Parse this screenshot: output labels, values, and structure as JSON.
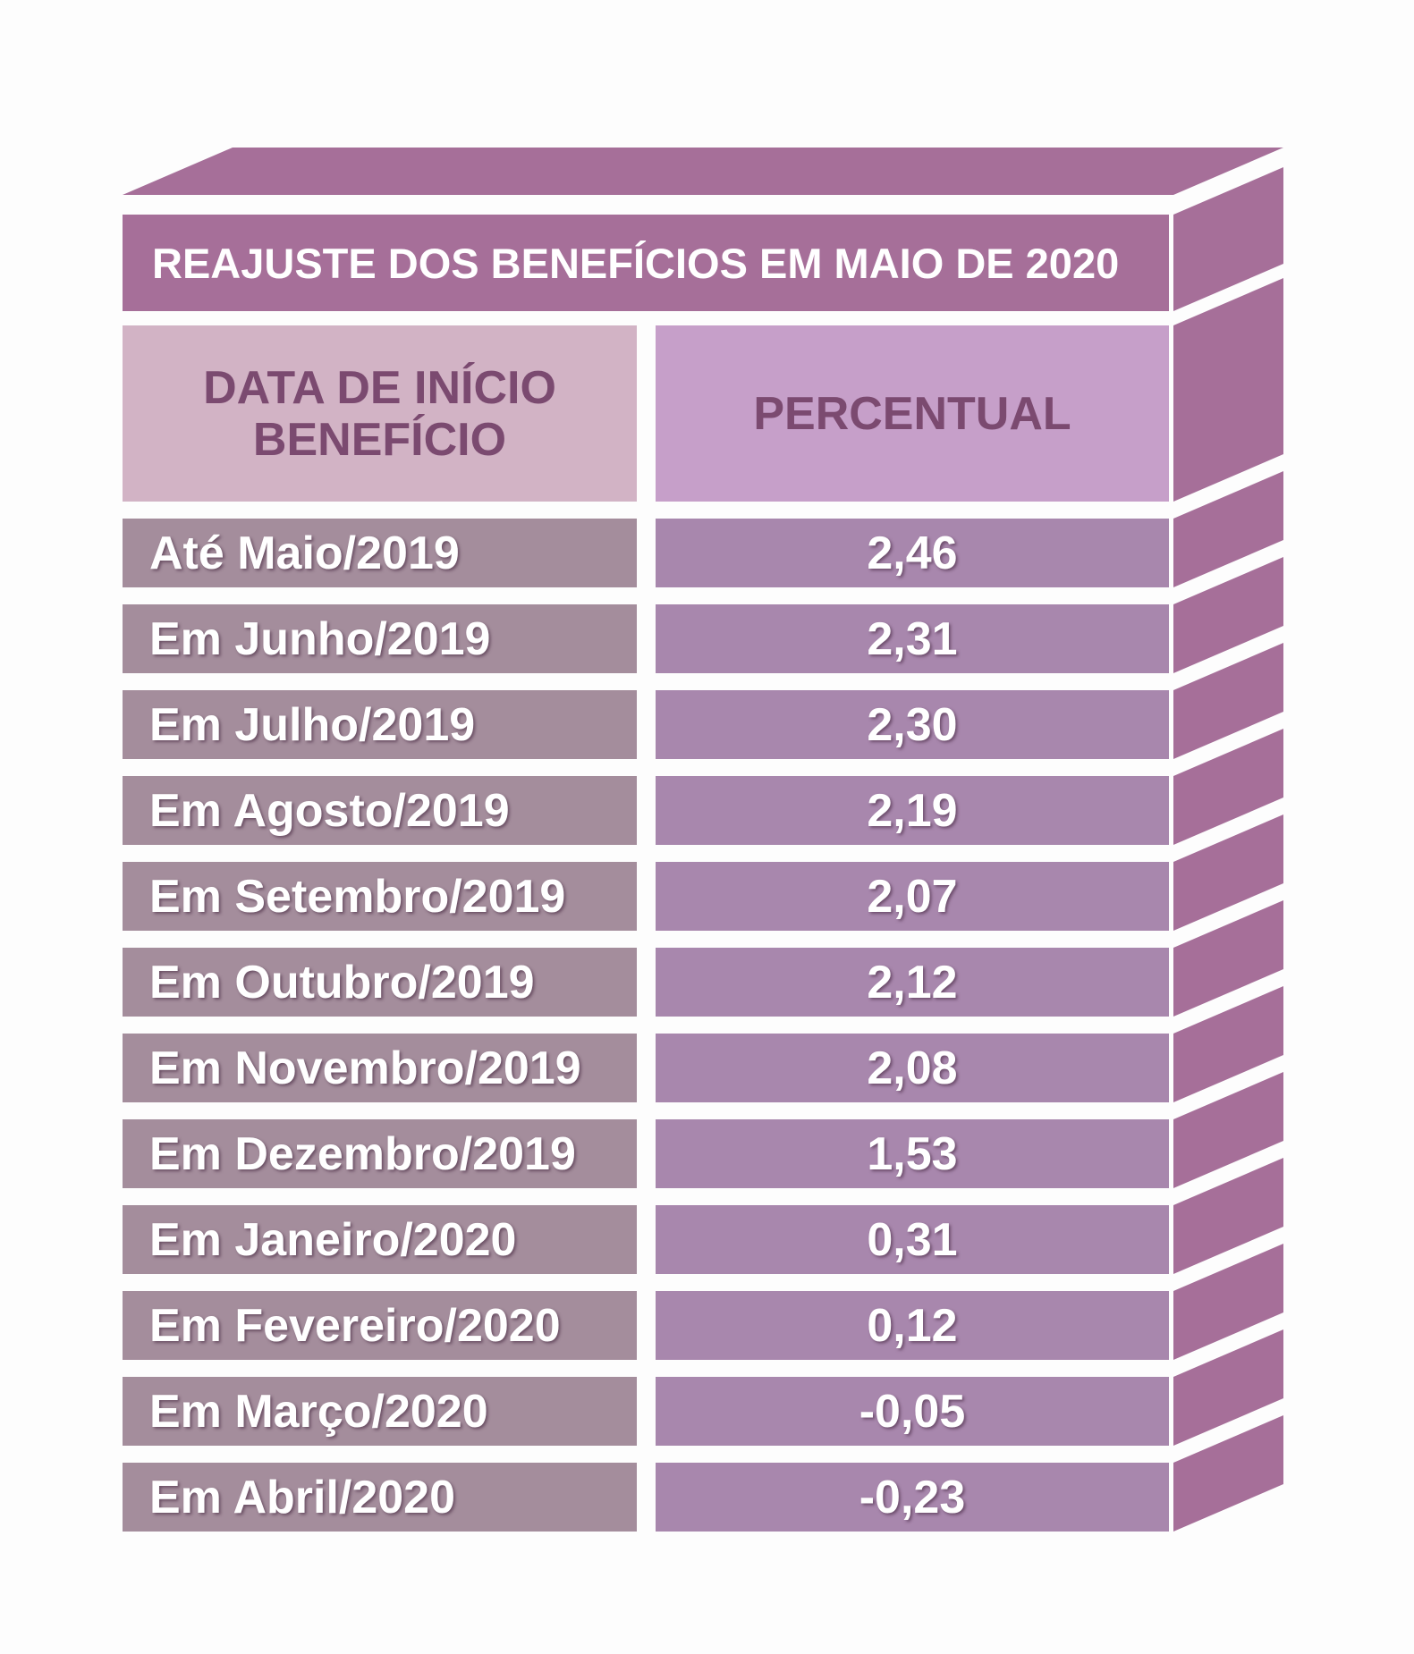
{
  "title": "REAJUSTE DOS BENEFÍCIOS EM MAIO DE 2020",
  "header": {
    "left_line1": "DATA DE INÍCIO",
    "left_line2": "BENEFÍCIO",
    "right": "PERCENTUAL"
  },
  "colors": {
    "frame": "#a66f99",
    "header_left": "#d2b3c5",
    "header_right": "#c69fc9",
    "row_left": "#a48d9c",
    "row_right": "#a887ad",
    "header_text": "#7b4a70"
  },
  "chart_data": {
    "type": "table",
    "title": "REAJUSTE DOS BENEFÍCIOS EM MAIO DE 2020",
    "columns": [
      "DATA DE INÍCIO BENEFÍCIO",
      "PERCENTUAL"
    ],
    "rows": [
      {
        "period": "Até Maio/2019",
        "value": "2,46"
      },
      {
        "period": "Em Junho/2019",
        "value": "2,31"
      },
      {
        "period": "Em Julho/2019",
        "value": "2,30"
      },
      {
        "period": "Em Agosto/2019",
        "value": "2,19"
      },
      {
        "period": "Em Setembro/2019",
        "value": "2,07"
      },
      {
        "period": "Em Outubro/2019",
        "value": "2,12"
      },
      {
        "period": "Em Novembro/2019",
        "value": "2,08"
      },
      {
        "period": "Em Dezembro/2019",
        "value": "1,53"
      },
      {
        "period": "Em Janeiro/2020",
        "value": "0,31"
      },
      {
        "period": "Em Fevereiro/2020",
        "value": "0,12"
      },
      {
        "period": "Em Março/2020",
        "value": "-0,05"
      },
      {
        "period": "Em Abril/2020",
        "value": "-0,23"
      }
    ]
  }
}
